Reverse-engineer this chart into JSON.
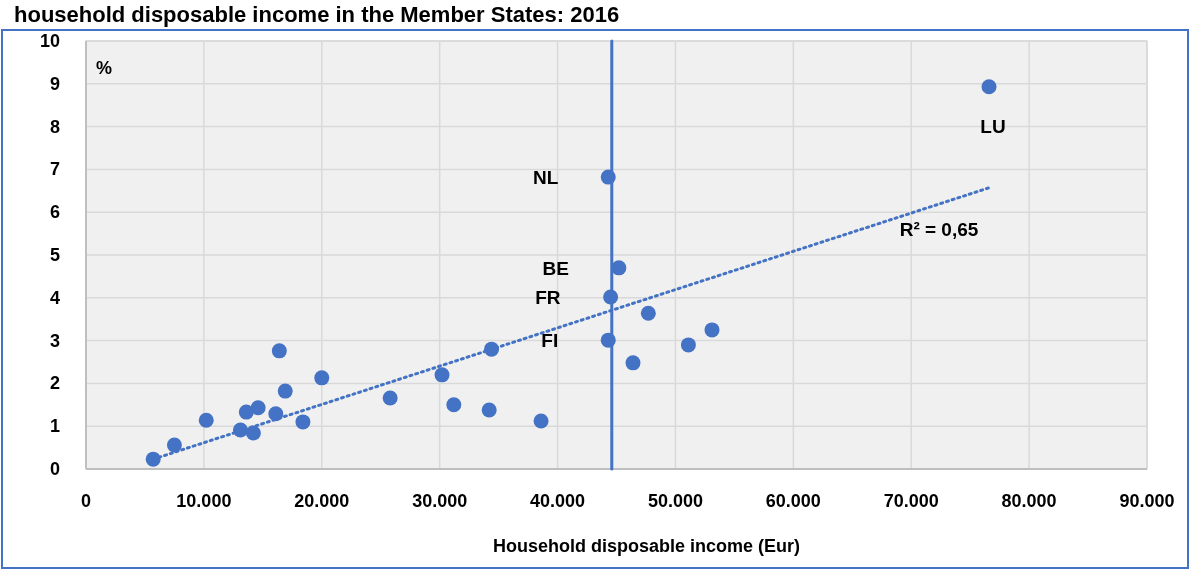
{
  "chart_data": {
    "type": "scatter",
    "title": "household disposable income in the Member States: 2016",
    "xlabel": "Household disposable income (Eur)",
    "ylabel": "%",
    "xlim": [
      0,
      90000
    ],
    "ylim": [
      0,
      10
    ],
    "xticks": [
      0,
      {
        "value": 10000,
        "label": "10.000"
      },
      {
        "value": 20000,
        "label": "20.000"
      },
      {
        "value": 30000,
        "label": "30.000"
      },
      {
        "value": 40000,
        "label": "40.000"
      },
      {
        "value": 50000,
        "label": "50.000"
      },
      {
        "value": 60000,
        "label": "60.000"
      },
      {
        "value": 70000,
        "label": "70.000"
      },
      {
        "value": 80000,
        "label": "80.000"
      },
      {
        "value": 90000,
        "label": "90.000"
      }
    ],
    "yticks": [
      0,
      1,
      2,
      3,
      4,
      5,
      6,
      7,
      8,
      9,
      10
    ],
    "grid": true,
    "marker": "circle",
    "series": [
      {
        "color": "#4472c4",
        "x": [
          5700,
          7500,
          10200,
          13100,
          13600,
          14200,
          14600,
          16100,
          16400,
          16900,
          18400,
          20000,
          25800,
          30200,
          31200,
          34400,
          34200,
          38600,
          44300,
          45200,
          44500,
          44300,
          46400,
          47700,
          51100,
          53100,
          76600
        ],
        "values": [
          0.23,
          0.56,
          1.14,
          0.91,
          1.33,
          0.84,
          1.43,
          1.29,
          2.76,
          1.82,
          1.1,
          2.13,
          1.66,
          2.2,
          1.5,
          2.8,
          1.38,
          1.12,
          6.82,
          4.7,
          4.02,
          3.01,
          2.48,
          3.64,
          2.9,
          3.25,
          8.93
        ]
      },
      {
        "type": "line",
        "color": "#4472c4",
        "line_style": "dotted",
        "marker": "none",
        "x": [
          5700,
          76600
        ],
        "values": [
          0.23,
          6.57
        ]
      },
      {
        "type": "line",
        "color": "#4472c4",
        "line_style": "solid",
        "marker": "none",
        "x": [
          44600,
          44600
        ],
        "values": [
          0,
          10
        ]
      }
    ],
    "annotations": [
      {
        "text": "NL",
        "x": 44300,
        "y": 6.82
      },
      {
        "text": "BE",
        "x": 45200,
        "y": 4.7
      },
      {
        "text": "FR",
        "x": 44500,
        "y": 4.02
      },
      {
        "text": "FI",
        "x": 44300,
        "y": 3.01
      },
      {
        "text": "LU",
        "x": 76600,
        "y": 8.93
      },
      "R² = 0,65"
    ]
  }
}
